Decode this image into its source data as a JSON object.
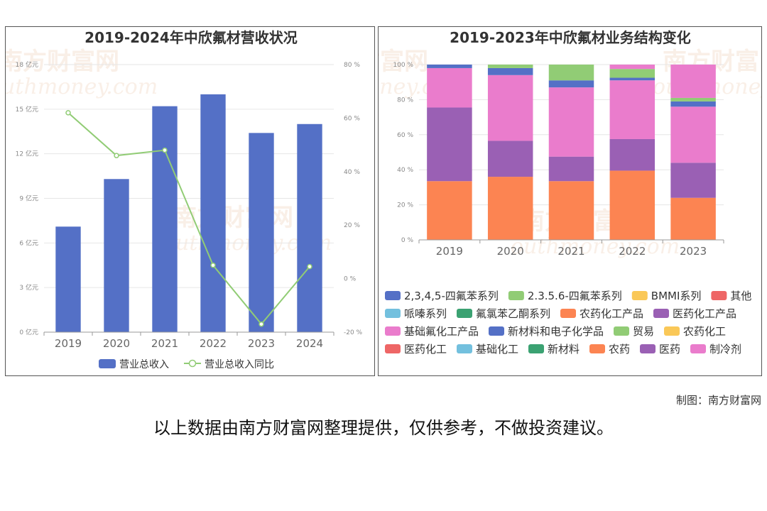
{
  "charts": {
    "left": {
      "title": "2019-2024年中欣氟材营收状况"
    },
    "right": {
      "title": "2019-2023年中欣氟材业务结构变化"
    }
  },
  "watermark": {
    "cn": "南方财富网",
    "en": "outhmoney.com"
  },
  "footer": {
    "credit": "制图：南方财富网",
    "disclaimer": "以上数据由南方财富网整理提供，仅供参考，不做投资建议。"
  },
  "colors": {
    "bar_blue": "#5470c6",
    "line_green": "#91cc75",
    "grid": "#e6e6e6",
    "axis": "#999999"
  },
  "chart_data": [
    {
      "type": "bar",
      "title": "2019-2024年中欣氟材营收状况",
      "categories": [
        "2019",
        "2020",
        "2021",
        "2022",
        "2023",
        "2024"
      ],
      "y_left": {
        "ticks": [
          "0 亿元",
          "3 亿元",
          "6 亿元",
          "9 亿元",
          "12 亿元",
          "15 亿元",
          "18 亿元"
        ],
        "range": [
          0,
          18
        ]
      },
      "y_right": {
        "ticks": [
          "-20 %",
          "0 %",
          "20 %",
          "40 %",
          "60 %",
          "80 %"
        ],
        "range": [
          -20,
          80
        ]
      },
      "series": [
        {
          "name": "营业总收入",
          "type": "bar",
          "axis": "left",
          "color": "#5470c6",
          "values": [
            7.1,
            10.3,
            15.2,
            16.0,
            13.4,
            14.0
          ]
        },
        {
          "name": "营业总收入同比",
          "type": "line",
          "axis": "right",
          "color": "#91cc75",
          "values": [
            62,
            46,
            48,
            5,
            -17,
            4.5
          ]
        }
      ],
      "legend": "bottom-center"
    },
    {
      "type": "bar",
      "stacked": true,
      "title": "2019-2023年中欣氟材业务结构变化",
      "categories": [
        "2019",
        "2020",
        "2021",
        "2022",
        "2023"
      ],
      "y": {
        "ticks": [
          "0 %",
          "20 %",
          "40 %",
          "60 %",
          "80 %",
          "100 %"
        ],
        "range": [
          0,
          100
        ]
      },
      "legend_items": [
        {
          "name": "2,3,4,5-四氟苯系列",
          "color": "#5470c6"
        },
        {
          "name": "2.3.5.6-四氟苯系列",
          "color": "#91cc75"
        },
        {
          "name": "BMMI系列",
          "color": "#fac858"
        },
        {
          "name": "其他",
          "color": "#ee6666"
        },
        {
          "name": "哌嗪系列",
          "color": "#73c0de"
        },
        {
          "name": "氟氯苯乙酮系列",
          "color": "#3ba272"
        },
        {
          "name": "农药化工产品",
          "color": "#fc8452"
        },
        {
          "name": "医药化工产品",
          "color": "#9a60b4"
        },
        {
          "name": "基础氟化工产品",
          "color": "#ea7ccc"
        },
        {
          "name": "新材料和电子化学品",
          "color": "#5470c6"
        },
        {
          "name": "贸易",
          "color": "#91cc75"
        },
        {
          "name": "农药化工",
          "color": "#fac858"
        },
        {
          "name": "医药化工",
          "color": "#ee6666"
        },
        {
          "name": "基础化工",
          "color": "#73c0de"
        },
        {
          "name": "新材料",
          "color": "#3ba272"
        },
        {
          "name": "农药",
          "color": "#fc8452"
        },
        {
          "name": "医药",
          "color": "#9a60b4"
        },
        {
          "name": "制冷剂",
          "color": "#ea7ccc"
        }
      ],
      "stack_values": [
        [
          {
            "series": "农药化工产品",
            "value": 33.5
          },
          {
            "series": "医药化工产品",
            "value": 42
          },
          {
            "series": "基础氟化工产品",
            "value": 22.5
          },
          {
            "series": "新材料和电子化学品",
            "value": 2
          }
        ],
        [
          {
            "series": "农药化工产品",
            "value": 36
          },
          {
            "series": "医药化工产品",
            "value": 20.5
          },
          {
            "series": "基础氟化工产品",
            "value": 37.5
          },
          {
            "series": "新材料和电子化学品",
            "value": 4
          },
          {
            "series": "贸易",
            "value": 2
          }
        ],
        [
          {
            "series": "农药化工产品",
            "value": 33.5
          },
          {
            "series": "医药化工产品",
            "value": 14
          },
          {
            "series": "基础氟化工产品",
            "value": 39.5
          },
          {
            "series": "新材料和电子化学品",
            "value": 4
          },
          {
            "series": "贸易",
            "value": 9
          }
        ],
        [
          {
            "series": "农药化工产品",
            "value": 39.5
          },
          {
            "series": "医药化工产品",
            "value": 18
          },
          {
            "series": "基础氟化工产品",
            "value": 33.5
          },
          {
            "series": "新材料和电子化学品",
            "value": 1.5
          },
          {
            "series": "贸易",
            "value": 5
          },
          {
            "series": "制冷剂",
            "value": 2.5
          }
        ],
        [
          {
            "series": "农药",
            "value": 24
          },
          {
            "series": "医药",
            "value": 20
          },
          {
            "series": "制冷剂",
            "value": 32
          },
          {
            "series": "新材料和电子化学品",
            "value": 3
          },
          {
            "series": "贸易",
            "value": 2
          },
          {
            "series": "基础氟化工产品",
            "value": 19
          }
        ]
      ],
      "legend": "bottom"
    }
  ]
}
